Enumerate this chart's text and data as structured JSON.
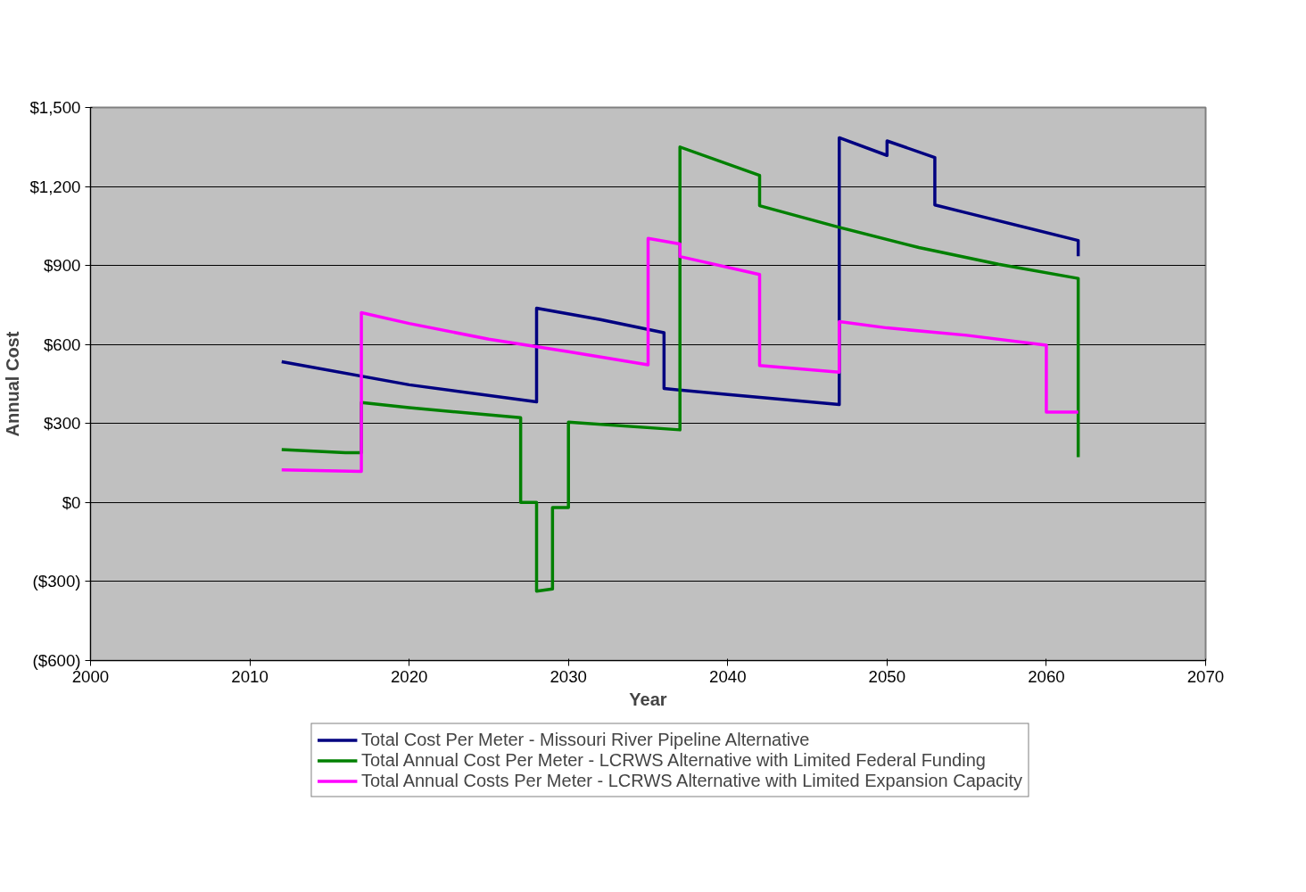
{
  "chart_data": {
    "type": "line",
    "xlabel": "Year",
    "ylabel": "Annual Cost",
    "xlim": [
      2000,
      2070
    ],
    "xticks": [
      2000,
      2010,
      2020,
      2030,
      2040,
      2050,
      2060,
      2070
    ],
    "ylim": [
      -600,
      1500
    ],
    "yticks": [
      {
        "value": -600,
        "label": "($600)"
      },
      {
        "value": -300,
        "label": "($300)"
      },
      {
        "value": 0,
        "label": "$0"
      },
      {
        "value": 300,
        "label": "$300"
      },
      {
        "value": 600,
        "label": "$600"
      },
      {
        "value": 900,
        "label": "$900"
      },
      {
        "value": 1200,
        "label": "$1,200"
      },
      {
        "value": 1500,
        "label": "$1,500"
      }
    ],
    "grid": "y",
    "legend": "bottom",
    "marker": "none",
    "line_style": "solid",
    "series": [
      {
        "name": "Total Cost Per Meter - Missouri River Pipeline Alternative",
        "color": "#000080",
        "x": [
          2012,
          2020,
          2028,
          2028,
          2032,
          2036,
          2036,
          2040,
          2047,
          2047,
          2050,
          2050,
          2053,
          2053,
          2055,
          2062,
          2062
        ],
        "values": [
          535,
          447,
          382,
          738,
          695,
          645,
          433,
          410,
          372,
          1385,
          1318,
          1373,
          1310,
          1130,
          1100,
          995,
          935
        ]
      },
      {
        "name": "Total Annual Cost Per Meter - LCRWS Alternative with Limited Federal Funding",
        "color": "#008000",
        "x": [
          2012,
          2016,
          2017,
          2017,
          2020,
          2027,
          2027,
          2028,
          2028,
          2029,
          2029,
          2030,
          2030,
          2037,
          2037,
          2042,
          2042,
          2047,
          2052,
          2057,
          2062,
          2062
        ],
        "values": [
          201,
          189,
          189,
          380,
          360,
          322,
          0,
          0,
          -337,
          -328,
          -19,
          -19,
          305,
          276,
          1350,
          1242,
          1127,
          1045,
          968,
          905,
          851,
          172
        ]
      },
      {
        "name": "Total Annual Costs Per Meter - LCRWS Alternative with Limited Expansion Capacity",
        "color": "#ff00ff",
        "x": [
          2012,
          2017,
          2017,
          2020,
          2025,
          2030,
          2035,
          2035,
          2037,
          2037,
          2042,
          2042,
          2047,
          2047,
          2050,
          2055,
          2060,
          2060,
          2062
        ],
        "values": [
          124,
          118,
          721,
          680,
          620,
          573,
          523,
          1003,
          982,
          934,
          866,
          520,
          495,
          687,
          663,
          635,
          597,
          343,
          343
        ]
      }
    ]
  }
}
